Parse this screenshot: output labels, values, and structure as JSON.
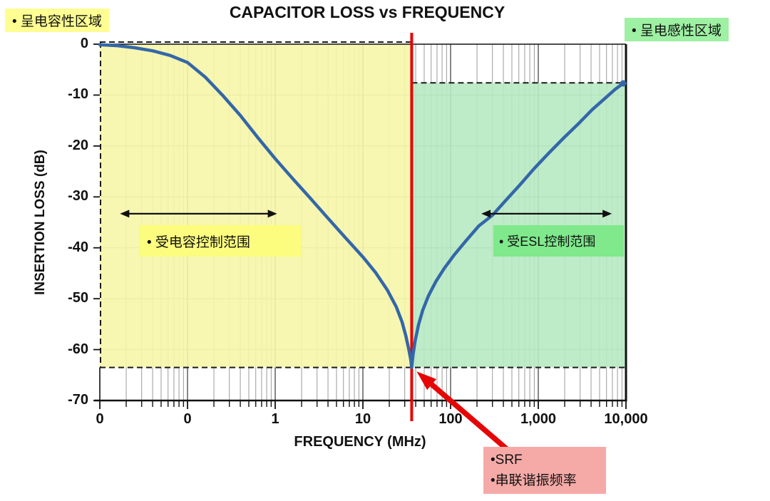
{
  "chart_data": {
    "type": "line",
    "title": "CAPACITOR LOSS vs FREQUENCY",
    "xlabel": "FREQUENCY (MHz)",
    "ylabel": "INSERTION LOSS (dB)",
    "x_scale": "log",
    "x_range": [
      0.01,
      10000
    ],
    "y_range": [
      0,
      -70
    ],
    "x_ticks": [
      {
        "value": 0.01,
        "label": "0"
      },
      {
        "value": 0.1,
        "label": "0"
      },
      {
        "value": 1,
        "label": "1"
      },
      {
        "value": 10,
        "label": "10"
      },
      {
        "value": 100,
        "label": "100"
      },
      {
        "value": 1000,
        "label": "1,000"
      },
      {
        "value": 10000,
        "label": "10,000"
      }
    ],
    "y_ticks": [
      0,
      -10,
      -20,
      -30,
      -40,
      -50,
      -60,
      -70
    ],
    "grid": true,
    "legend": "none",
    "srf_mhz": 36,
    "min_loss_db": -63.5,
    "right_end_loss_db": -7.6,
    "series": [
      {
        "name": "capacitor insertion loss",
        "color": "#3467A9",
        "points": [
          [
            0.01,
            -0.1
          ],
          [
            0.016,
            -0.3
          ],
          [
            0.025,
            -0.7
          ],
          [
            0.04,
            -1.3
          ],
          [
            0.063,
            -2.2
          ],
          [
            0.1,
            -3.6
          ],
          [
            0.16,
            -6.5
          ],
          [
            0.25,
            -10
          ],
          [
            0.4,
            -14
          ],
          [
            0.63,
            -18.3
          ],
          [
            1,
            -22.5
          ],
          [
            1.6,
            -26.5
          ],
          [
            2.5,
            -30.2
          ],
          [
            4,
            -34.2
          ],
          [
            6.3,
            -38
          ],
          [
            10,
            -41.8
          ],
          [
            14,
            -44.9
          ],
          [
            19,
            -48.3
          ],
          [
            24,
            -51.6
          ],
          [
            28,
            -54.6
          ],
          [
            31,
            -57.4
          ],
          [
            33.5,
            -60.1
          ],
          [
            35.2,
            -62
          ],
          [
            36,
            -63.5
          ],
          [
            37.3,
            -61
          ],
          [
            39.5,
            -58.2
          ],
          [
            43,
            -55.2
          ],
          [
            48,
            -52.3
          ],
          [
            56,
            -49.4
          ],
          [
            68,
            -46.6
          ],
          [
            85,
            -44
          ],
          [
            110,
            -41.4
          ],
          [
            150,
            -38.6
          ],
          [
            210,
            -35.7
          ],
          [
            300,
            -33.6
          ],
          [
            430,
            -30.6
          ],
          [
            620,
            -27.6
          ],
          [
            900,
            -24.4
          ],
          [
            1300,
            -21.5
          ],
          [
            1900,
            -18.6
          ],
          [
            2800,
            -15.8
          ],
          [
            4100,
            -12.9
          ],
          [
            5800,
            -10.6
          ],
          [
            7600,
            -8.8
          ],
          [
            9300,
            -7.7
          ]
        ]
      }
    ],
    "regions": [
      {
        "name": "capacitive region",
        "fill": "#F6F6A8",
        "opacity": 0.9,
        "x": [
          0.01,
          36
        ],
        "y_db": [
          0,
          -63.5
        ]
      },
      {
        "name": "inductive region",
        "fill": "#B7EAC2",
        "opacity": 0.9,
        "x": [
          36,
          10000
        ],
        "y_db": [
          -7.6,
          -63.5
        ]
      }
    ],
    "dashed_lines": [
      {
        "name": "zero-db-reference",
        "x": [
          0.01,
          36
        ],
        "db": 0
      },
      {
        "name": "left-edge-reference",
        "vertical_at": 0.01,
        "db_span": [
          0,
          -63.5
        ]
      },
      {
        "name": "min-loss-reference",
        "x": [
          0.01,
          10000
        ],
        "db": -63.5
      },
      {
        "name": "inductive-top-reference",
        "x": [
          36,
          10000
        ],
        "db": -7.6
      }
    ],
    "range_arrows": [
      {
        "name": "capacitance-controlled-span",
        "x": [
          0.017,
          1.05
        ],
        "db": -33.3
      },
      {
        "name": "esl-controlled-span",
        "x": [
          224,
          6900
        ],
        "db": -33.3
      }
    ],
    "srf_pointer": {
      "from": [
        550,
        -81
      ],
      "to": [
        41,
        -64.3
      ],
      "color": "#E60505"
    }
  },
  "labels": {
    "capacitive_region_tag": "• 呈电容性区域",
    "inductive_region_tag": "• 呈电感性区域",
    "capacitance_range": "• 受电容控制范围",
    "esl_range": "• 受ESL控制范围",
    "srf_line1": "•SRF",
    "srf_line2": "•串联谐振频率"
  },
  "colors": {
    "curve": "#3467A9",
    "srf_line": "#E60505",
    "capacitive_fill": "#F6F6A8",
    "inductive_fill": "#B7EAC2",
    "capacitive_tag_bg": "#FEFE92",
    "inductive_tag_bg": "#9EF0A3",
    "capacitance_range_bg": "#FCFC7E",
    "esl_range_bg": "#7FE98C",
    "srf_box_bg": "#F5AAA7"
  }
}
